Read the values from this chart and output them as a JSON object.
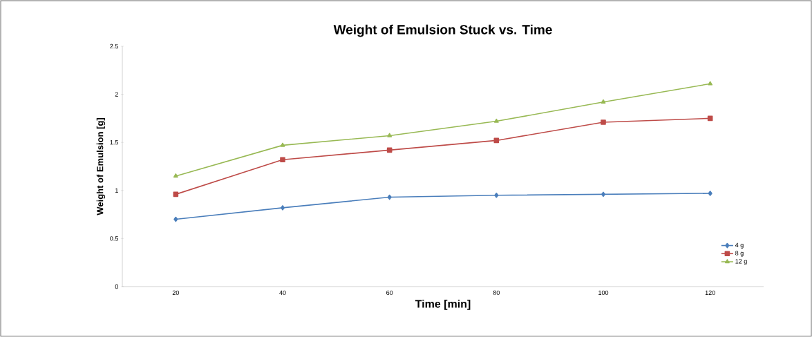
{
  "chart_data": {
    "type": "line",
    "title": "Weight of Emulsion Stuck vs. Time",
    "xlabel": "Time [min]",
    "ylabel": "Weight of Emulsion  [g]",
    "categories": [
      "20",
      "40",
      "60",
      "80",
      "100",
      "120"
    ],
    "series": [
      {
        "name": "4 g",
        "color": "#4a7ebb",
        "marker": "diamond",
        "values": [
          0.7,
          0.82,
          0.93,
          0.95,
          0.96,
          0.97
        ]
      },
      {
        "name": "8 g",
        "color": "#be4b48",
        "marker": "square",
        "values": [
          0.96,
          1.32,
          1.42,
          1.52,
          1.71,
          1.75
        ]
      },
      {
        "name": "12 g",
        "color": "#98b954",
        "marker": "triangle",
        "values": [
          1.15,
          1.47,
          1.57,
          1.72,
          1.92,
          2.11
        ]
      }
    ],
    "ylim": [
      0,
      2.5
    ],
    "yticks": [
      0,
      0.5,
      1,
      1.5,
      2,
      2.5
    ],
    "grid": false,
    "legend": "bottom right",
    "line_style": "solid"
  }
}
